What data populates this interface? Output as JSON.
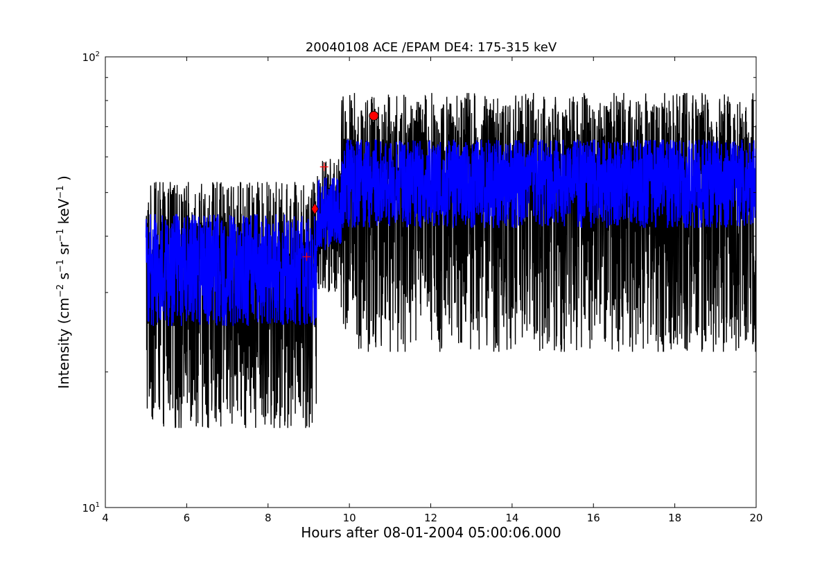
{
  "chart_data": {
    "type": "line",
    "title": "20040108 ACE /EPAM DE4: 175-315 keV",
    "xlabel": "Hours after 08-01-2004 05:00:06.000",
    "ylabel": {
      "base": "Intensity (cm",
      "exp1": "−2",
      "mid1": " s",
      "exp2": "−1",
      "mid2": " sr",
      "exp3": "−1",
      "mid3": " keV",
      "exp4": "−1",
      "end": " )"
    },
    "xlim": [
      4,
      20
    ],
    "ylim": [
      10,
      100
    ],
    "yscale": "log",
    "xticks": [
      4,
      6,
      8,
      10,
      12,
      14,
      16,
      18,
      20
    ],
    "xtick_labels": [
      "4",
      "6",
      "8",
      "10",
      "12",
      "14",
      "16",
      "18",
      "20"
    ],
    "yticks": [
      10,
      100
    ],
    "ytick_labels": [
      {
        "base": "10",
        "exp": "1"
      },
      {
        "base": "10",
        "exp": "2"
      }
    ],
    "yminor_ticks": [
      20,
      30,
      40,
      50,
      60,
      70,
      80,
      90
    ],
    "grid": false,
    "series": [
      {
        "color": "#000000",
        "segments": [
          {
            "x0": 5.0,
            "x1": 9.2,
            "median": 34,
            "lo": 13,
            "hi": 57
          },
          {
            "x0": 9.2,
            "x1": 9.8,
            "median": 43,
            "lo": 28,
            "hi": 64
          },
          {
            "x0": 9.8,
            "x1": 20.0,
            "median": 53,
            "lo": 19,
            "hi": 90
          }
        ]
      },
      {
        "color": "#0000ff",
        "segments": [
          {
            "x0": 5.0,
            "x1": 9.2,
            "median": 34,
            "lo": 24,
            "hi": 47
          },
          {
            "x0": 9.2,
            "x1": 9.8,
            "median": 44,
            "lo": 36,
            "hi": 56
          },
          {
            "x0": 9.8,
            "x1": 20.0,
            "median": 53,
            "lo": 40,
            "hi": 68
          }
        ]
      }
    ],
    "markers": [
      {
        "shape": "circle",
        "x": 10.6,
        "y": 74,
        "color": "#ff0000"
      },
      {
        "shape": "diamond",
        "x": 9.15,
        "y": 46,
        "color": "#ff0000"
      },
      {
        "shape": "plus",
        "x": 9.38,
        "y": 57,
        "color": "#ff0000"
      },
      {
        "shape": "plus",
        "x": 8.95,
        "y": 36,
        "color": "#ff0000"
      }
    ]
  }
}
